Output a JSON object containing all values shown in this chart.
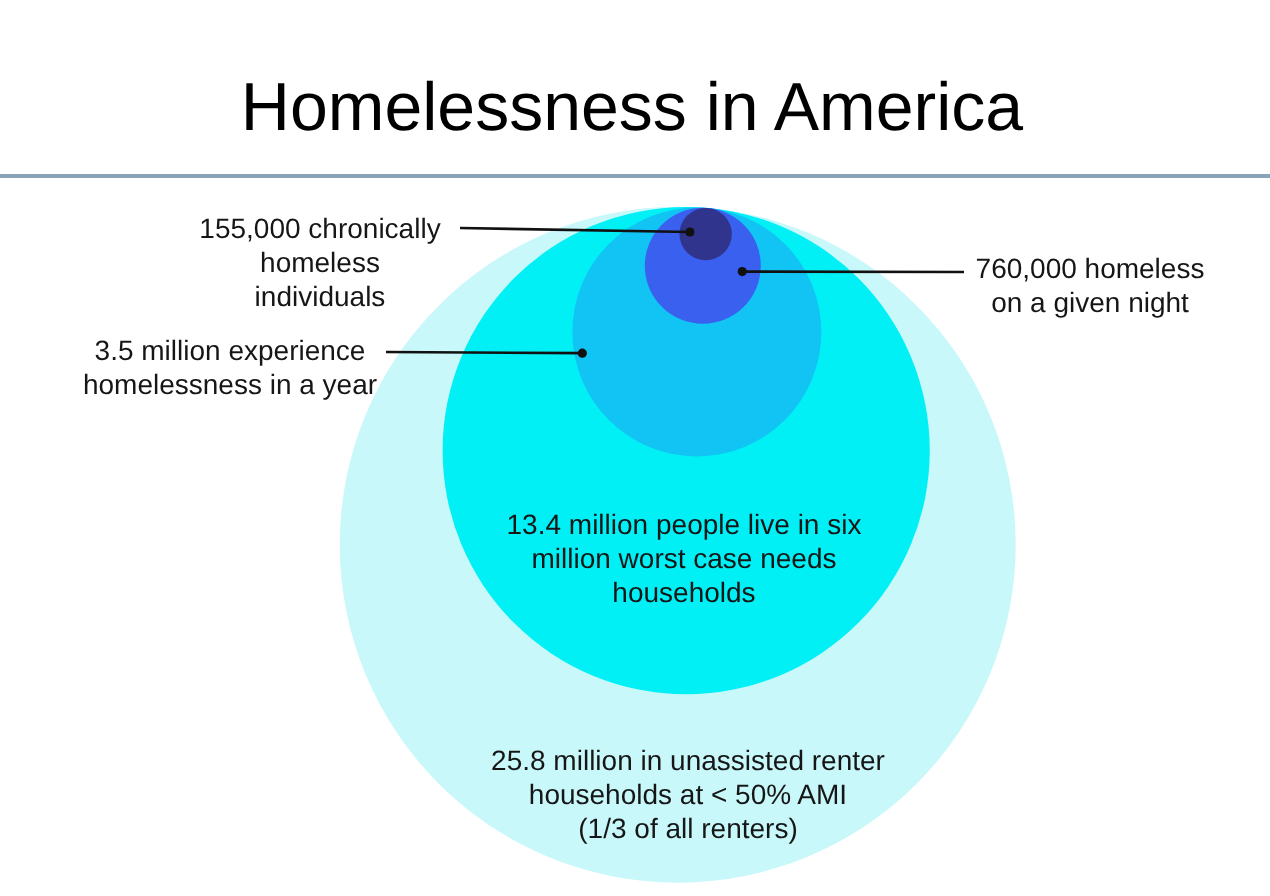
{
  "chart_data": {
    "type": "other",
    "title": "Homelessness in America",
    "categories": [
      "chronically\nhomeless\nindividuals",
      "homeless\non a given night",
      "experience\nhomelessness in a year",
      "people live in six\nmillion worst case needs\nhouseholds",
      "in unassisted renter\nhouseholds at < 50% AMI\n(1/3 of all renters)"
    ],
    "values": [
      155000,
      760000,
      3500000,
      13400000,
      25800000
    ],
    "value_labels": [
      "155,000",
      "760,000",
      "3.5 million",
      "13.4 million",
      "25.8 million"
    ],
    "colors": [
      "#30348c",
      "#3a60f0",
      "#12c4f4",
      "#00f0f6",
      "#c8f8fa"
    ]
  }
}
